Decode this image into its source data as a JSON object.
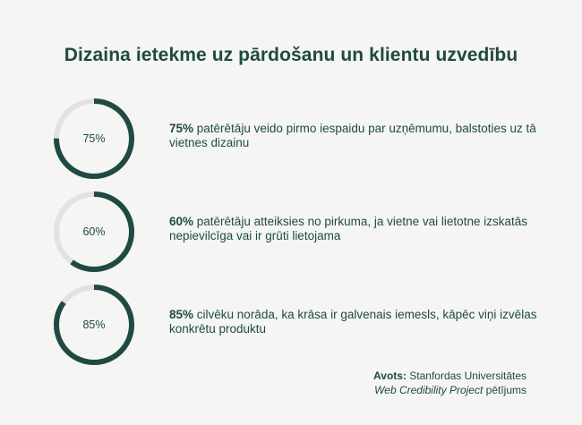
{
  "title": "Dizaina ietekme uz pārdošanu un klientu uzvedību",
  "colors": {
    "ring_fill": "#1f4a44",
    "ring_track": "#e2e2e0",
    "background": "#f5f5f3"
  },
  "stats": [
    {
      "value": 0.75,
      "label": "75%",
      "bold": "75%",
      "text": " patērētāju veido pirmo iespaidu par uzņēmumu, balstoties uz tā vietnes dizainu"
    },
    {
      "value": 0.6,
      "label": "60%",
      "bold": "60%",
      "text": " patērētāju atteiksies no pirkuma, ja vietne vai lietotne izskatās nepievilcīga vai ir grūti lietojama"
    },
    {
      "value": 0.85,
      "label": "85%",
      "bold": "85%",
      "text": " cilvēku norāda, ka krāsa ir galvenais iemesls, kāpēc viņi izvēlas konkrētu produktu"
    }
  ],
  "source": {
    "prefix": "Avots:",
    "line1": " Stanfordas Universitātes",
    "italic": "Web Credibility Project",
    "line2_suffix": " pētījums"
  }
}
